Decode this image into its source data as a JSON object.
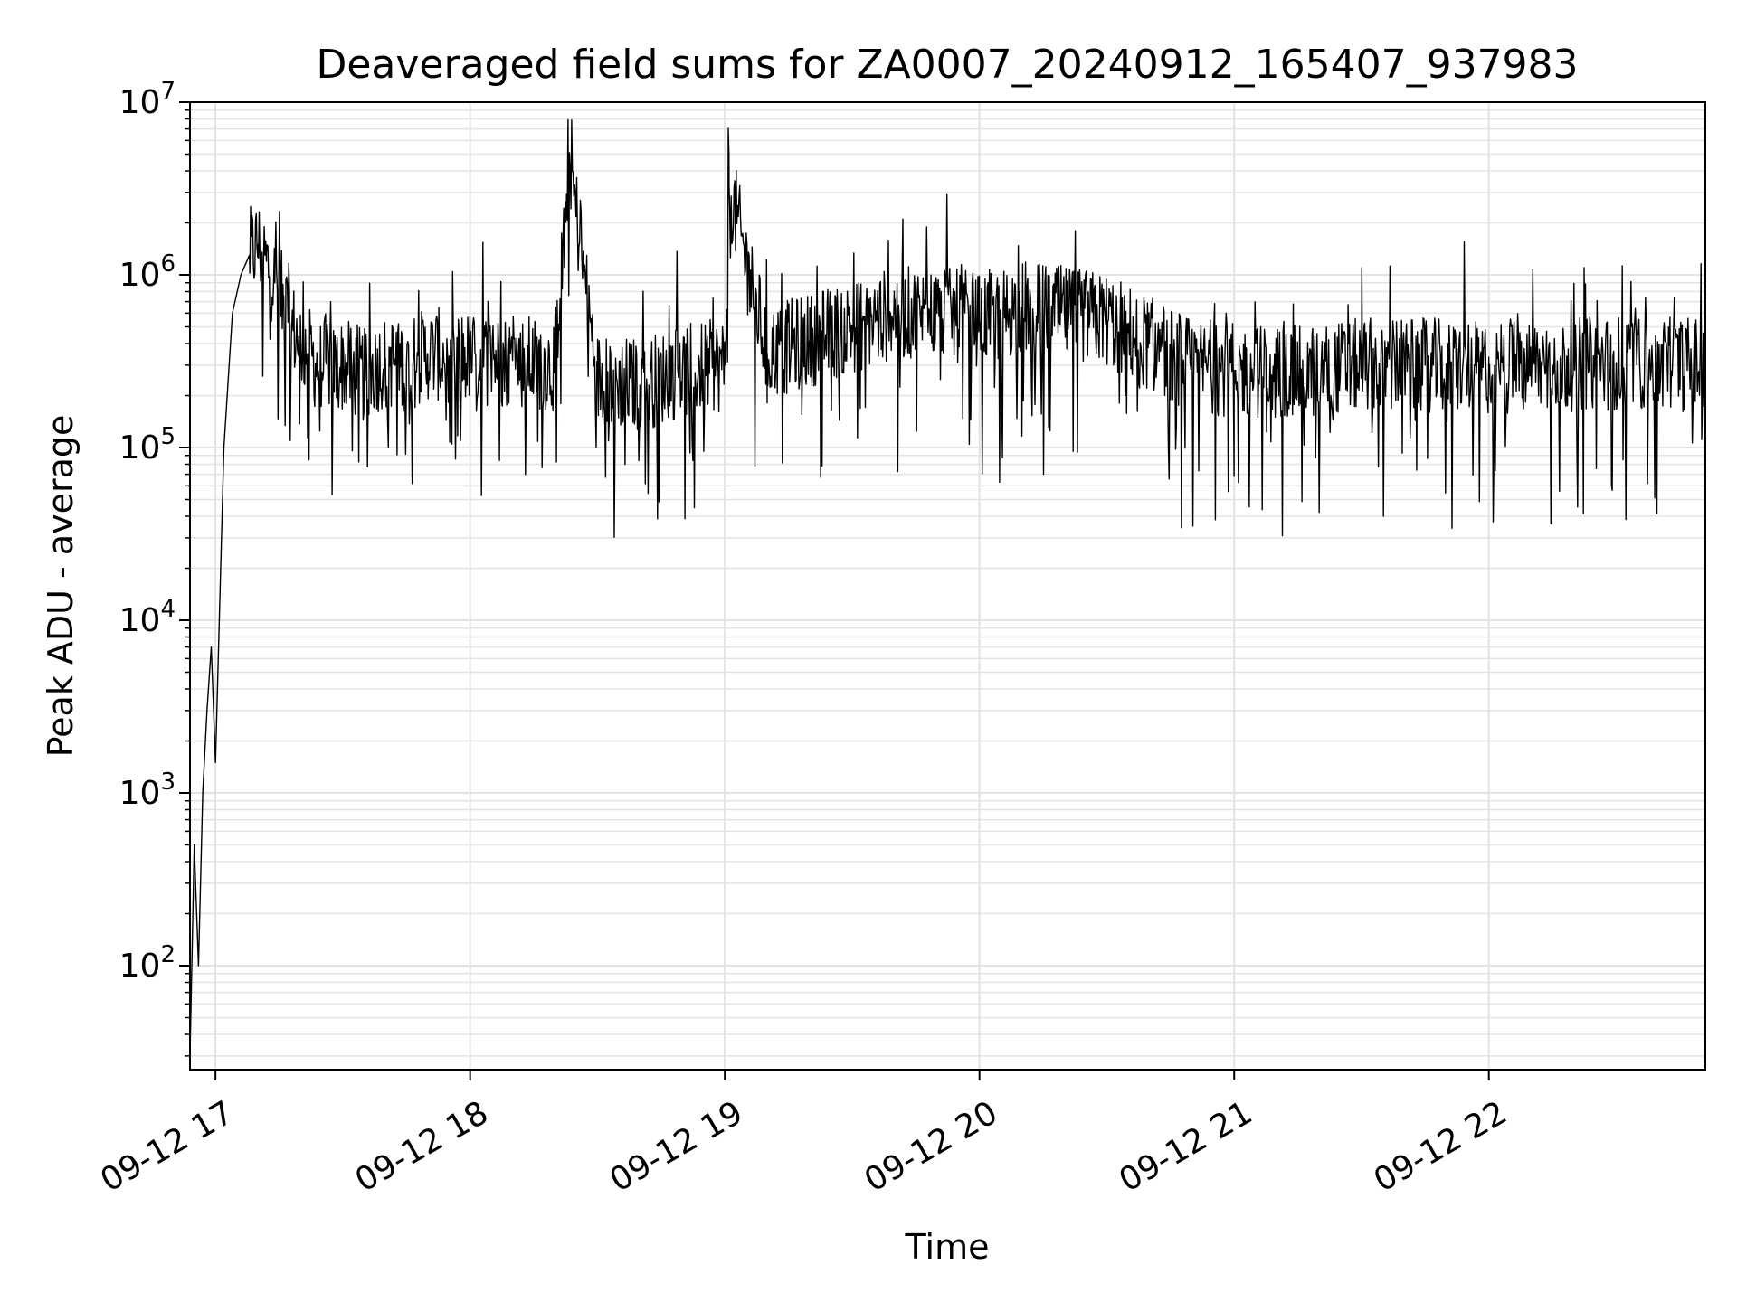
{
  "chart_data": {
    "type": "line",
    "title": "Deaveraged field sums for ZA0007_20240912_165407_937983",
    "xlabel": "Time",
    "ylabel": "Peak ADU - average",
    "yscale": "log",
    "ylim": [
      25,
      10000000
    ],
    "xlim": [
      "2024-09-12 16:54",
      "2024-09-12 22:51"
    ],
    "grid": true,
    "line_color": "#000000",
    "grid_color": "#e3e3e3",
    "x_ticks": [
      "09-12 17",
      "09-12 18",
      "09-12 19",
      "09-12 20",
      "09-12 21",
      "09-12 22"
    ],
    "y_ticks": [
      {
        "value": 100,
        "base": "10",
        "exp": "2"
      },
      {
        "value": 1000,
        "base": "10",
        "exp": "3"
      },
      {
        "value": 10000,
        "base": "10",
        "exp": "4"
      },
      {
        "value": 100000,
        "base": "10",
        "exp": "5"
      },
      {
        "value": 1000000,
        "base": "10",
        "exp": "6"
      },
      {
        "value": 10000000,
        "base": "10",
        "exp": "7"
      }
    ],
    "series": [
      {
        "x": [
          "2024-09-12 16:54",
          "2024-09-12 16:55",
          "2024-09-12 16:56",
          "2024-09-12 16:57",
          "2024-09-12 16:58",
          "2024-09-12 16:59",
          "2024-09-12 17:00",
          "2024-09-12 17:02",
          "2024-09-12 17:04",
          "2024-09-12 17:06",
          "2024-09-12 17:08",
          "2024-09-12 17:10",
          "2024-09-12 17:12",
          "2024-09-12 17:14",
          "2024-09-12 17:16",
          "2024-09-12 17:18",
          "2024-09-12 17:20",
          "2024-09-12 17:22",
          "2024-09-12 17:24",
          "2024-09-12 17:26",
          "2024-09-12 17:28",
          "2024-09-12 17:30",
          "2024-09-12 17:35",
          "2024-09-12 17:40",
          "2024-09-12 17:45",
          "2024-09-12 17:50",
          "2024-09-12 18:00",
          "2024-09-12 18:10",
          "2024-09-12 18:20",
          "2024-09-12 18:23",
          "2024-09-12 18:30",
          "2024-09-12 18:40",
          "2024-09-12 18:50",
          "2024-09-12 19:00",
          "2024-09-12 19:01",
          "2024-09-12 19:10",
          "2024-09-12 19:20",
          "2024-09-12 19:30",
          "2024-09-12 19:40",
          "2024-09-12 19:50",
          "2024-09-12 20:00",
          "2024-09-12 20:10",
          "2024-09-12 20:20",
          "2024-09-12 20:30",
          "2024-09-12 20:40",
          "2024-09-12 20:50",
          "2024-09-12 21:00",
          "2024-09-12 21:15",
          "2024-09-12 21:30",
          "2024-09-12 21:45",
          "2024-09-12 22:00",
          "2024-09-12 22:15",
          "2024-09-12 22:30",
          "2024-09-12 22:45",
          "2024-09-12 22:51"
        ],
        "y": [
          30,
          500,
          100,
          1000,
          3000,
          7000,
          1500,
          100000,
          600000,
          1000000,
          1300000,
          1500000,
          1200000,
          900000,
          700000,
          500000,
          400000,
          350000,
          300000,
          320000,
          280000,
          300000,
          260000,
          320000,
          300000,
          350000,
          330000,
          320000,
          300000,
          5500000,
          250000,
          230000,
          280000,
          300000,
          3300000,
          350000,
          420000,
          500000,
          600000,
          600000,
          550000,
          650000,
          600000,
          550000,
          400000,
          300000,
          280000,
          270000,
          300000,
          300000,
          290000,
          300000,
          310000,
          300000,
          320000
        ]
      }
    ]
  }
}
